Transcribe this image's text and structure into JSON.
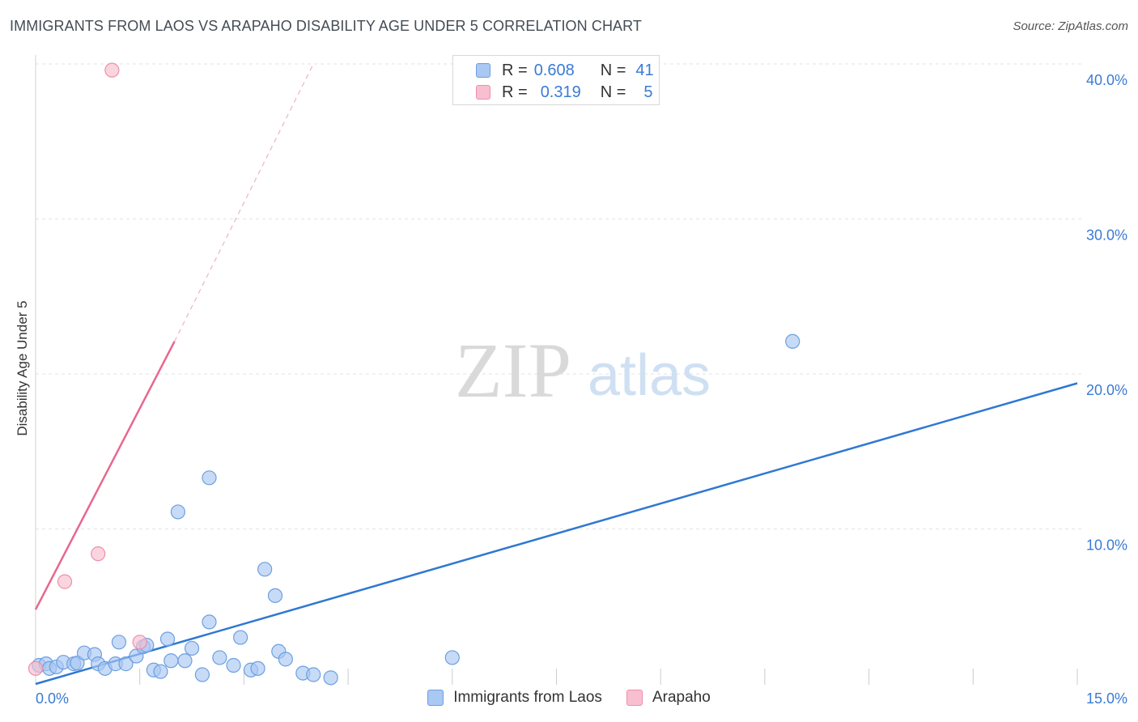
{
  "header": {
    "title": "IMMIGRANTS FROM LAOS VS ARAPAHO DISABILITY AGE UNDER 5 CORRELATION CHART",
    "source": "Source: ZipAtlas.com"
  },
  "legend": {
    "rows": [
      {
        "r_label": "R =",
        "r_value": "0.608",
        "n_label": "N =",
        "n_value": "41",
        "color": "#a9c8f2",
        "border": "#6c9fe0"
      },
      {
        "r_label": "R =",
        "r_value": "0.319",
        "n_label": "N =",
        "n_value": "5",
        "color": "#f8bfd0",
        "border": "#ee8fab"
      }
    ]
  },
  "bottom_legend": {
    "items": [
      {
        "label": "Immigrants from Laos",
        "color": "#a9c8f2",
        "border": "#6c9fe0"
      },
      {
        "label": "Arapaho",
        "color": "#f8bfd0",
        "border": "#ee8fab"
      }
    ]
  },
  "watermark": {
    "zip": "ZIP",
    "atlas": "atlas"
  },
  "colors": {
    "blue_fill": "#a9c8f2",
    "blue_stroke": "#6c9fe0",
    "blue_line": "#2f78d2",
    "pink_fill": "#f8bfd0",
    "pink_stroke": "#ee8fab",
    "pink_line": "#e8678e",
    "tick_text": "#3a7bd5",
    "grid": "#e3e3e3"
  },
  "chart_data": {
    "type": "scatter",
    "title": "IMMIGRANTS FROM LAOS VS ARAPAHO DISABILITY AGE UNDER 5 CORRELATION CHART",
    "xlabel": "",
    "ylabel": "Disability Age Under 5",
    "xlim": [
      0,
      15
    ],
    "ylim": [
      0,
      40
    ],
    "x_tick_labels": [
      "0.0%",
      "15.0%"
    ],
    "y_ticks": [
      10,
      20,
      30,
      40
    ],
    "y_tick_labels": [
      "10.0%",
      "20.0%",
      "30.0%",
      "40.0%"
    ],
    "x_minor_ticks": [
      1.5,
      3.0,
      4.5,
      6.0,
      7.5,
      9.0,
      10.5,
      12.0,
      13.5,
      15.0
    ],
    "legend_position": "top-center",
    "series": [
      {
        "name": "Immigrants from Laos",
        "r": 0.608,
        "n": 41,
        "points": [
          [
            0.05,
            1.2
          ],
          [
            0.15,
            1.3
          ],
          [
            0.2,
            1.0
          ],
          [
            0.3,
            1.1
          ],
          [
            0.4,
            1.4
          ],
          [
            0.55,
            1.3
          ],
          [
            0.6,
            1.35
          ],
          [
            0.7,
            2.0
          ],
          [
            0.85,
            1.9
          ],
          [
            0.9,
            1.3
          ],
          [
            1.0,
            1.0
          ],
          [
            1.15,
            1.3
          ],
          [
            1.2,
            2.7
          ],
          [
            1.3,
            1.3
          ],
          [
            1.45,
            1.8
          ],
          [
            1.55,
            2.4
          ],
          [
            1.6,
            2.5
          ],
          [
            1.7,
            0.9
          ],
          [
            1.8,
            0.8
          ],
          [
            1.9,
            2.9
          ],
          [
            1.95,
            1.5
          ],
          [
            2.05,
            11.1
          ],
          [
            2.15,
            1.5
          ],
          [
            2.25,
            2.3
          ],
          [
            2.4,
            0.6
          ],
          [
            2.5,
            4.0
          ],
          [
            2.5,
            13.3
          ],
          [
            2.65,
            1.7
          ],
          [
            2.85,
            1.2
          ],
          [
            2.95,
            3.0
          ],
          [
            3.1,
            0.9
          ],
          [
            3.2,
            1.0
          ],
          [
            3.3,
            7.4
          ],
          [
            3.45,
            5.7
          ],
          [
            3.5,
            2.1
          ],
          [
            3.6,
            1.6
          ],
          [
            3.85,
            0.7
          ],
          [
            4.0,
            0.6
          ],
          [
            4.25,
            0.4
          ],
          [
            6.0,
            1.7
          ],
          [
            10.9,
            22.1
          ]
        ],
        "trendline": {
          "x": [
            0,
            15
          ],
          "y": [
            0,
            19.4
          ]
        }
      },
      {
        "name": "Arapaho",
        "r": 0.319,
        "n": 5,
        "points": [
          [
            0.0,
            1.0
          ],
          [
            0.42,
            6.6
          ],
          [
            0.9,
            8.4
          ],
          [
            1.1,
            39.6
          ],
          [
            1.5,
            2.7
          ]
        ],
        "trendline": {
          "x": [
            0,
            2.0
          ],
          "y": [
            4.8,
            22.1
          ]
        },
        "trendline_extended": {
          "x": [
            2.0,
            4.0
          ],
          "y": [
            22.1,
            40.0
          ]
        }
      }
    ]
  }
}
